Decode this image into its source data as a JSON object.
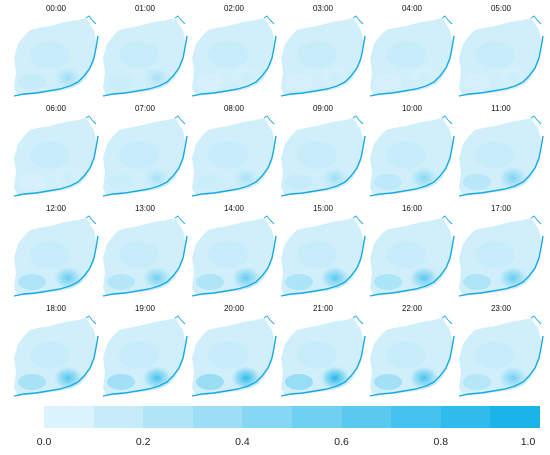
{
  "chart_data": {
    "type": "heatmap",
    "panels": [
      "00:00",
      "01:00",
      "02:00",
      "03:00",
      "04:00",
      "05:00",
      "06:00",
      "07:00",
      "08:00",
      "09:00",
      "10:00",
      "11:00",
      "12:00",
      "13:00",
      "14:00",
      "15:00",
      "16:00",
      "17:00",
      "18:00",
      "19:00",
      "20:00",
      "21:00",
      "22:00",
      "23:00"
    ],
    "hotspot_intensity": [
      0.35,
      0.3,
      0.15,
      0.15,
      0.15,
      0.15,
      0.15,
      0.3,
      0.3,
      0.35,
      0.45,
      0.5,
      0.6,
      0.55,
      0.6,
      0.65,
      0.65,
      0.6,
      0.7,
      0.75,
      0.85,
      0.9,
      0.75,
      0.55
    ],
    "colorbar": {
      "min": 0.0,
      "max": 1.0,
      "ticks": [
        "0.0",
        "0.2",
        "0.4",
        "0.6",
        "0.8",
        "1.0"
      ],
      "steps": 10,
      "color_low": "#e6f6fd",
      "color_high": "#0fb0e8"
    },
    "coastline_color": "#19a9e2",
    "grid": false
  }
}
